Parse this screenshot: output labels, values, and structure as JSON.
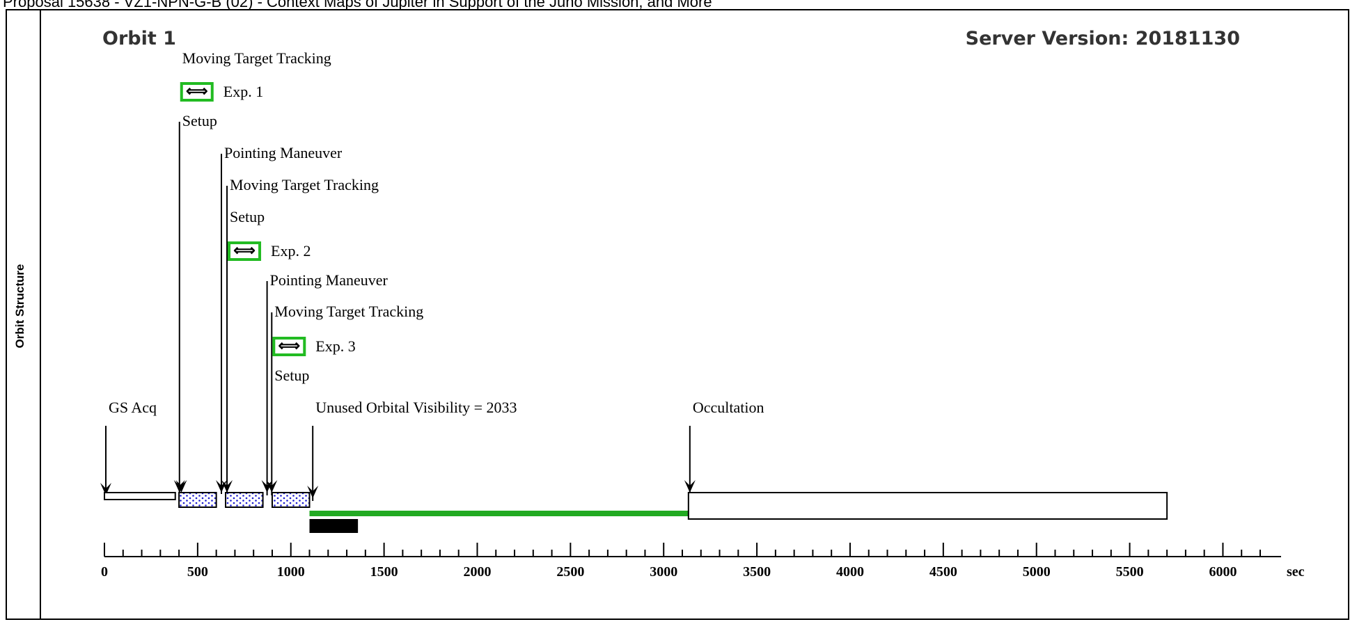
{
  "header": {
    "text": "Proposal 15638 - VZ1-NPN-G-B (02) - Context Maps of Jupiter in Support of the Juno Mission, and More"
  },
  "side_label": "Orbit Structure",
  "orbit_title": "Orbit 1",
  "server_version": "Server Version: 20181130",
  "exp_icon_glyph": "⟺",
  "colors": {
    "exposure_border": "#22bb22",
    "visibility_bar": "#22aa22",
    "dotted_fill": "#1a1ad0",
    "black_bar": "#000000"
  },
  "events": [
    {
      "label": "Moving Target Tracking",
      "type": "text"
    },
    {
      "label": "Exp. 1",
      "type": "exposure",
      "icon": "exposure-arrows-icon"
    },
    {
      "label": "Setup",
      "type": "text"
    },
    {
      "label": "Pointing Maneuver",
      "type": "text"
    },
    {
      "label": "Moving Target Tracking",
      "type": "text"
    },
    {
      "label": "Setup",
      "type": "text"
    },
    {
      "label": "Exp. 2",
      "type": "exposure",
      "icon": "exposure-arrows-icon"
    },
    {
      "label": "Pointing Maneuver",
      "type": "text"
    },
    {
      "label": "Moving Target Tracking",
      "type": "text"
    },
    {
      "label": "Exp. 3",
      "type": "exposure",
      "icon": "exposure-arrows-icon"
    },
    {
      "label": "Setup",
      "type": "text"
    },
    {
      "label": "GS Acq",
      "type": "text"
    },
    {
      "label": "Unused Orbital Visibility = 2033",
      "type": "text"
    },
    {
      "label": "Occultation",
      "type": "text"
    }
  ],
  "timeline": {
    "unit": "sec",
    "axis_min": 0,
    "axis_max": 6200,
    "major_ticks": [
      0,
      500,
      1000,
      1500,
      2000,
      2500,
      3000,
      3500,
      4000,
      4500,
      5000,
      5500,
      6000
    ],
    "minor_step": 100,
    "segments": [
      {
        "kind": "gs-acq",
        "start": 0,
        "end": 380
      },
      {
        "kind": "exposure",
        "start": 400,
        "end": 600
      },
      {
        "kind": "exposure",
        "start": 650,
        "end": 850
      },
      {
        "kind": "exposure",
        "start": 900,
        "end": 1100
      },
      {
        "kind": "unused-visibility",
        "start": 1100,
        "end": 3133
      },
      {
        "kind": "black-block",
        "start": 1100,
        "end": 1360
      },
      {
        "kind": "occultation",
        "start": 3133,
        "end": 5700
      }
    ],
    "markers": [
      0,
      395,
      405,
      620,
      650,
      865,
      890,
      1110,
      3133
    ]
  }
}
